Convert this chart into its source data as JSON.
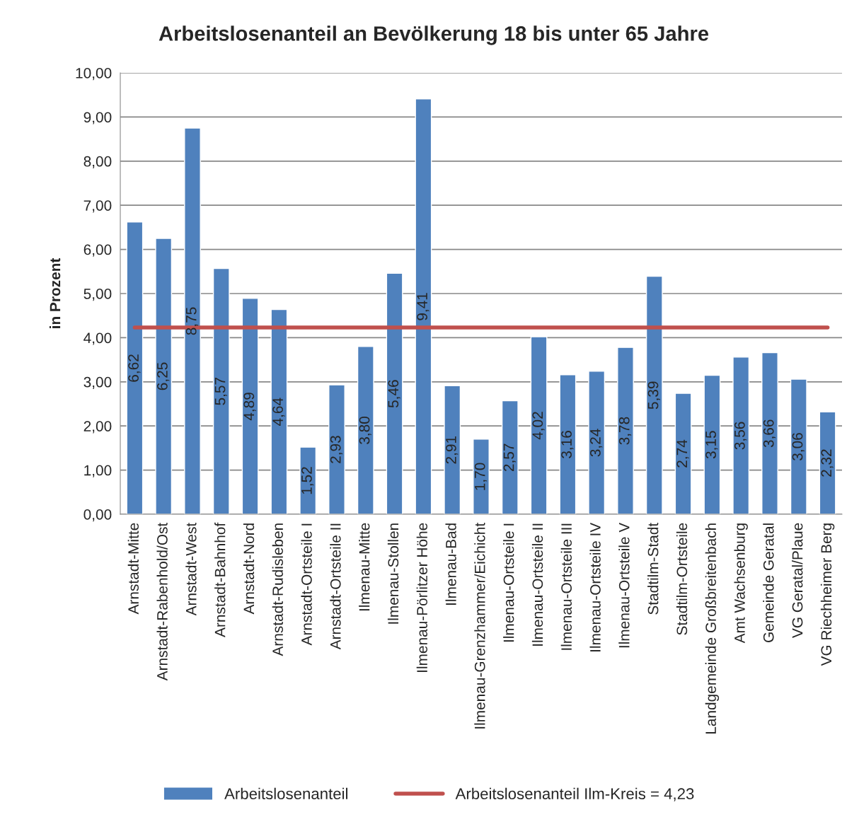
{
  "chart_data": {
    "type": "bar",
    "title": "Arbeitslosenanteil an Bevölkerung 18 bis unter 65 Jahre",
    "ylabel": "in Prozent",
    "categories": [
      "Arnstadt-Mitte",
      "Arnstadt-Rabenhold/Ost",
      "Arnstadt-West",
      "Arnstadt-Bahnhof",
      "Arnstadt-Nord",
      "Arnstadt-Rudisleben",
      "Arnstadt-Ortsteile I",
      "Arnstadt-Ortsteile II",
      "Ilmenau-Mitte",
      "Ilmenau-Stollen",
      "Ilmenau-Pörlitzer Höhe",
      "Ilmenau-Bad",
      "Ilmenau-Grenzhammer/Eichicht",
      "Ilmenau-Ortsteile I",
      "Ilmenau-Ortsteile II",
      "Ilmenau-Ortsteile III",
      "Ilmenau-Ortsteile IV",
      "Ilmenau-Ortsteile V",
      "Stadtilm-Stadt",
      "Stadtilm-Ortsteile",
      "Landgemeinde Großbreitenbach",
      "Amt Wachsenburg",
      "Gemeinde Geratal",
      "VG Geratal/Plaue",
      "VG Riechheimer Berg"
    ],
    "series": [
      {
        "name": "Arbeitslosenanteil",
        "color": "#4f81bd",
        "values": [
          6.62,
          6.25,
          8.75,
          5.57,
          4.89,
          4.64,
          1.52,
          2.93,
          3.8,
          5.46,
          9.41,
          2.91,
          1.7,
          2.57,
          4.02,
          3.16,
          3.24,
          3.78,
          5.39,
          2.74,
          3.15,
          3.56,
          3.66,
          3.06,
          2.32
        ],
        "value_labels": [
          "6,62",
          "6,25",
          "8,75",
          "5,57",
          "4,89",
          "4,64",
          "1,52",
          "2,93",
          "3,80",
          "5,46",
          "9,41",
          "2,91",
          "1,70",
          "2,57",
          "4,02",
          "3,16",
          "3,24",
          "3,78",
          "5,39",
          "2,74",
          "3,15",
          "3,56",
          "3,66",
          "3,06",
          "2,32"
        ]
      },
      {
        "name": "Arbeitslosenanteil Ilm-Kreis = 4,23",
        "type": "line",
        "color": "#c0504d",
        "values": [
          4.23,
          4.23,
          4.23,
          4.23,
          4.23,
          4.23,
          4.23,
          4.23,
          4.23,
          4.23,
          4.23,
          4.23,
          4.23,
          4.23,
          4.23,
          4.23,
          4.23,
          4.23,
          4.23,
          4.23,
          4.23,
          4.23,
          4.23,
          4.23,
          4.23
        ]
      }
    ],
    "ylim": [
      0,
      10
    ],
    "yticks": [
      {
        "value": 0,
        "label": "0,00"
      },
      {
        "value": 1,
        "label": "1,00"
      },
      {
        "value": 2,
        "label": "2,00"
      },
      {
        "value": 3,
        "label": "3,00"
      },
      {
        "value": 4,
        "label": "4,00"
      },
      {
        "value": 5,
        "label": "5,00"
      },
      {
        "value": 6,
        "label": "6,00"
      },
      {
        "value": 7,
        "label": "7,00"
      },
      {
        "value": 8,
        "label": "8,00"
      },
      {
        "value": 9,
        "label": "9,00"
      },
      {
        "value": 10,
        "label": "10,00"
      }
    ],
    "grid": "y",
    "legend": "bottom"
  }
}
